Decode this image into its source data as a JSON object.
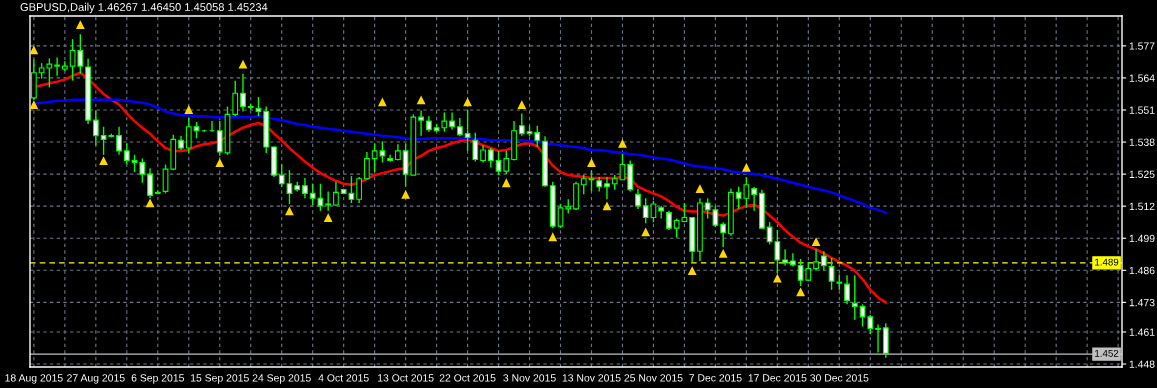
{
  "chart_data": {
    "type": "candlestick",
    "title": "GBPUSD,Daily 1.46267 1.46450 1.45058 1.45234",
    "color": "#00ff00",
    "categories": [
      "18 Aug 2015",
      null,
      null,
      null,
      null,
      null,
      null,
      null,
      "27 Aug 2015",
      null,
      null,
      null,
      null,
      null,
      null,
      null,
      "6 Sep 2015",
      null,
      null,
      null,
      null,
      null,
      null,
      null,
      "15 Sep 2015",
      null,
      null,
      null,
      null,
      null,
      null,
      null,
      "24 Sep 2015",
      null,
      null,
      null,
      null,
      null,
      null,
      null,
      "4 Oct 2015",
      null,
      null,
      null,
      null,
      null,
      null,
      null,
      "13 Oct 2015",
      null,
      null,
      null,
      null,
      null,
      null,
      null,
      "22 Oct 2015",
      null,
      null,
      null,
      null,
      null,
      null,
      null,
      "3 Nov 2015",
      null,
      null,
      null,
      null,
      null,
      null,
      null,
      "13 Nov 2015",
      null,
      null,
      null,
      null,
      null,
      null,
      null,
      "25 Nov 2015",
      null,
      null,
      null,
      null,
      null,
      null,
      null,
      "7 Dec 2015",
      null,
      null,
      null,
      null,
      null,
      null,
      null,
      "17 Dec 2015",
      null,
      null,
      null,
      null,
      null,
      null,
      null,
      "30 Dec 2015",
      null,
      null,
      null,
      null,
      null,
      null,
      null,
      null,
      null,
      null,
      null,
      null,
      null,
      null,
      null,
      null,
      null,
      null,
      null,
      null,
      null,
      null,
      null,
      null,
      null,
      null,
      null,
      null,
      null,
      null,
      null,
      null,
      null,
      null,
      null,
      null
    ],
    "ohlc": [
      [
        1.5559,
        1.5715,
        1.5551,
        1.5661
      ],
      [
        1.5661,
        1.57,
        1.5637,
        1.568
      ],
      [
        1.568,
        1.5719,
        1.5602,
        1.5696
      ],
      [
        1.5688,
        1.5723,
        1.5649,
        1.5692
      ],
      [
        1.5676,
        1.5708,
        1.5668,
        1.5688
      ],
      [
        1.5688,
        1.5797,
        1.5629,
        1.5751
      ],
      [
        1.5751,
        1.5817,
        1.5657,
        1.5688
      ],
      [
        1.5684,
        1.5719,
        1.5453,
        1.5469
      ],
      [
        1.5469,
        1.5508,
        1.5367,
        1.5406
      ],
      [
        1.5406,
        1.5442,
        1.5328,
        1.5391
      ],
      [
        1.5406,
        1.5414,
        1.5399,
        1.5403
      ],
      [
        1.5406,
        1.5442,
        1.5328,
        1.5344
      ],
      [
        1.5344,
        1.5375,
        1.5289,
        1.5305
      ],
      [
        1.5305,
        1.5328,
        1.5258,
        1.5297
      ],
      [
        1.5297,
        1.5313,
        1.5215,
        1.525
      ],
      [
        1.525,
        1.5274,
        1.5152,
        1.5164
      ],
      [
        1.5172,
        1.5184,
        1.5168,
        1.5176
      ],
      [
        1.518,
        1.5289,
        1.5172,
        1.527
      ],
      [
        1.527,
        1.541,
        1.5266,
        1.5391
      ],
      [
        1.5387,
        1.5406,
        1.5348,
        1.5356
      ],
      [
        1.5356,
        1.5477,
        1.5336,
        1.5442
      ],
      [
        1.5442,
        1.5461,
        1.5395,
        1.5426
      ],
      [
        1.5426,
        1.543,
        1.5422,
        1.5426
      ],
      [
        1.5426,
        1.5465,
        1.5422,
        1.5426
      ],
      [
        1.5426,
        1.5465,
        1.5324,
        1.534
      ],
      [
        1.5336,
        1.5524,
        1.5328,
        1.5492
      ],
      [
        1.5492,
        1.5629,
        1.5485,
        1.5578
      ],
      [
        1.5578,
        1.5657,
        1.5504,
        1.5524
      ],
      [
        1.5524,
        1.5535,
        1.5512,
        1.552
      ],
      [
        1.5516,
        1.5563,
        1.5485,
        1.5504
      ],
      [
        1.5504,
        1.5524,
        1.5336,
        1.536
      ],
      [
        1.536,
        1.5363,
        1.5238,
        1.5246
      ],
      [
        1.5246,
        1.5289,
        1.5199,
        1.5211
      ],
      [
        1.5211,
        1.5266,
        1.5129,
        1.5172
      ],
      [
        1.5203,
        1.5219,
        1.518,
        1.5187
      ],
      [
        1.5203,
        1.5234,
        1.5152,
        1.5172
      ],
      [
        1.5172,
        1.5211,
        1.5125,
        1.5152
      ],
      [
        1.5152,
        1.5211,
        1.5101,
        1.5121
      ],
      [
        1.5125,
        1.518,
        1.5101,
        1.5129
      ],
      [
        1.5125,
        1.5219,
        1.5121,
        1.5176
      ],
      [
        1.5187,
        1.5191,
        1.5168,
        1.5172
      ],
      [
        1.5172,
        1.5242,
        1.5133,
        1.5148
      ],
      [
        1.5148,
        1.5238,
        1.5133,
        1.5231
      ],
      [
        1.5231,
        1.534,
        1.5227,
        1.5313
      ],
      [
        1.5313,
        1.5375,
        1.5258,
        1.5344
      ],
      [
        1.5344,
        1.5383,
        1.5297,
        1.5324
      ],
      [
        1.5313,
        1.5328,
        1.5301,
        1.5305
      ],
      [
        1.5309,
        1.5371,
        1.5305,
        1.5344
      ],
      [
        1.5344,
        1.5375,
        1.5199,
        1.525
      ],
      [
        1.5246,
        1.5492,
        1.5246,
        1.5481
      ],
      [
        1.5481,
        1.5508,
        1.5406,
        1.5469
      ],
      [
        1.5465,
        1.5485,
        1.5422,
        1.543
      ],
      [
        1.5438,
        1.5453,
        1.5422,
        1.5426
      ],
      [
        1.5438,
        1.55,
        1.5422,
        1.5465
      ],
      [
        1.5465,
        1.55,
        1.543,
        1.5442
      ],
      [
        1.5442,
        1.5477,
        1.5403,
        1.541
      ],
      [
        1.5414,
        1.5512,
        1.5344,
        1.5399
      ],
      [
        1.5387,
        1.5418,
        1.5301,
        1.5309
      ],
      [
        1.5305,
        1.5367,
        1.5297,
        1.5348
      ],
      [
        1.5348,
        1.5356,
        1.5277,
        1.5305
      ],
      [
        1.5305,
        1.5344,
        1.5246,
        1.5262
      ],
      [
        1.5262,
        1.5344,
        1.525,
        1.5313
      ],
      [
        1.5309,
        1.5465,
        1.5305,
        1.5426
      ],
      [
        1.5446,
        1.5496,
        1.5406,
        1.5414
      ],
      [
        1.5422,
        1.5446,
        1.5403,
        1.5414
      ],
      [
        1.5418,
        1.5446,
        1.536,
        1.5387
      ],
      [
        1.5383,
        1.5403,
        1.5199,
        1.5203
      ],
      [
        1.5203,
        1.5219,
        1.5031,
        1.5039
      ],
      [
        1.5039,
        1.5129,
        1.5031,
        1.5113
      ],
      [
        1.5109,
        1.5148,
        1.509,
        1.5117
      ],
      [
        1.5109,
        1.5219,
        1.5105,
        1.5211
      ],
      [
        1.5207,
        1.5246,
        1.5168,
        1.5231
      ],
      [
        1.5227,
        1.5266,
        1.518,
        1.5231
      ],
      [
        1.5223,
        1.5238,
        1.518,
        1.5199
      ],
      [
        1.5211,
        1.5238,
        1.5148,
        1.5199
      ],
      [
        1.5211,
        1.5246,
        1.5187,
        1.5231
      ],
      [
        1.5227,
        1.5332,
        1.5227,
        1.5289
      ],
      [
        1.5289,
        1.5305,
        1.518,
        1.5187
      ],
      [
        1.5168,
        1.5191,
        1.5109,
        1.5121
      ],
      [
        1.5121,
        1.5152,
        1.5051,
        1.5074
      ],
      [
        1.5074,
        1.5141,
        1.5055,
        1.5129
      ],
      [
        1.5113,
        1.5121,
        1.507,
        1.5101
      ],
      [
        1.5094,
        1.5101,
        1.5023,
        1.5031
      ],
      [
        1.5031,
        1.507,
        1.4992,
        1.5062
      ],
      [
        1.5058,
        1.5133,
        1.5055,
        1.5074
      ],
      [
        1.5074,
        1.5074,
        1.4894,
        1.4937
      ],
      [
        1.4937,
        1.5152,
        1.4898,
        1.5133
      ],
      [
        1.5133,
        1.5152,
        1.507,
        1.5105
      ],
      [
        1.5105,
        1.5121,
        1.5035,
        1.5043
      ],
      [
        1.5047,
        1.5055,
        1.4953,
        1.5012
      ],
      [
        1.5008,
        1.5191,
        1.5,
        1.5176
      ],
      [
        1.5176,
        1.5199,
        1.5109,
        1.5152
      ],
      [
        1.5152,
        1.5238,
        1.5113,
        1.5207
      ],
      [
        1.5191,
        1.5199,
        1.5101,
        1.5168
      ],
      [
        1.5172,
        1.5187,
        1.5031,
        1.5031
      ],
      [
        1.5035,
        1.5055,
        1.4965,
        1.4976
      ],
      [
        1.4976,
        1.5023,
        1.4847,
        1.4902
      ],
      [
        1.4902,
        1.4945,
        1.4879,
        1.489
      ],
      [
        1.4898,
        1.4929,
        1.4875,
        1.4882
      ],
      [
        1.4879,
        1.4906,
        1.4796,
        1.482
      ],
      [
        1.482,
        1.4894,
        1.4816,
        1.4867
      ],
      [
        1.4867,
        1.4945,
        1.4859,
        1.4894
      ],
      [
        1.4918,
        1.4937,
        1.4859,
        1.4879
      ],
      [
        1.4875,
        1.491,
        1.4781,
        1.4816
      ],
      [
        1.4812,
        1.4843,
        1.4781,
        1.4808
      ],
      [
        1.4804,
        1.484,
        1.4722,
        1.4738
      ],
      [
        1.4726,
        1.484,
        1.466,
        1.4714
      ],
      [
        1.4714,
        1.4722,
        1.4632,
        1.4671
      ],
      [
        1.4671,
        1.4679,
        1.4601,
        1.4624
      ],
      [
        1.4624,
        1.464,
        1.4527,
        1.4621
      ],
      [
        1.46267,
        1.4645,
        1.45058,
        1.45234
      ],
      null,
      null,
      null,
      null,
      null,
      null,
      null,
      null,
      null,
      null,
      null,
      null,
      null,
      null,
      null,
      null,
      null,
      null,
      null,
      null,
      null,
      null,
      null,
      null,
      null,
      null,
      null,
      null,
      null,
      null
    ],
    "series": [
      {
        "type": "line",
        "color": "#ff0000",
        "values": [
          1.5602,
          1.561,
          1.5618,
          1.5625,
          1.5633,
          1.5649,
          1.5661,
          1.5637,
          1.5606,
          1.5575,
          1.5551,
          1.5532,
          1.5496,
          1.5465,
          1.5438,
          1.5414,
          1.5383,
          1.5356,
          1.5344,
          1.5344,
          1.5348,
          1.5363,
          1.5371,
          1.5375,
          1.5383,
          1.5403,
          1.5422,
          1.5438,
          1.5449,
          1.5457,
          1.5446,
          1.5414,
          1.5387,
          1.5356,
          1.5328,
          1.5301,
          1.5277,
          1.5254,
          1.5238,
          1.5223,
          1.5211,
          1.5207,
          1.5215,
          1.5231,
          1.5246,
          1.5254,
          1.5262,
          1.527,
          1.5274,
          1.5309,
          1.5324,
          1.5344,
          1.5356,
          1.5363,
          1.5375,
          1.5383,
          1.5391,
          1.5379,
          1.5367,
          1.5356,
          1.5344,
          1.5348,
          1.536,
          1.5371,
          1.5375,
          1.5363,
          1.5324,
          1.5285,
          1.5258,
          1.5246,
          1.5242,
          1.5238,
          1.5234,
          1.5234,
          1.5234,
          1.5234,
          1.5238,
          1.5231,
          1.5199,
          1.5184,
          1.5172,
          1.516,
          1.5141,
          1.5117,
          1.5101,
          1.5098,
          1.5098,
          1.5094,
          1.5086,
          1.5082,
          1.5094,
          1.5109,
          1.5121,
          1.5125,
          1.5109,
          1.5082,
          1.5055,
          1.5023,
          1.4996,
          1.4972,
          1.4957,
          1.4945,
          1.4929,
          1.491,
          1.4894,
          1.4879,
          1.4859,
          1.4824,
          1.4781,
          1.475,
          1.473,
          null,
          null,
          null,
          null,
          null,
          null,
          null,
          null,
          null,
          null,
          null,
          null,
          null,
          null,
          null,
          null,
          null,
          null,
          null,
          null,
          null,
          null,
          null,
          null,
          null,
          null,
          null,
          null,
          null,
          null
        ]
      },
      {
        "type": "line",
        "color": "#0000ff",
        "values": [
          1.5535,
          1.5539,
          1.5543,
          1.5547,
          1.5547,
          1.5551,
          1.5551,
          1.5551,
          1.5551,
          1.5551,
          1.5551,
          1.5551,
          1.5547,
          1.5543,
          1.5539,
          1.5532,
          1.552,
          1.5504,
          1.5496,
          1.5489,
          1.5489,
          1.5485,
          1.5485,
          1.5481,
          1.5481,
          1.5481,
          1.5481,
          1.5481,
          1.5481,
          1.5485,
          1.5481,
          1.5473,
          1.5469,
          1.5461,
          1.5453,
          1.5449,
          1.5442,
          1.5438,
          1.5434,
          1.543,
          1.5426,
          1.5422,
          1.5418,
          1.5414,
          1.541,
          1.5406,
          1.5403,
          1.5399,
          1.5395,
          1.5391,
          1.5391,
          1.5395,
          1.5395,
          1.5395,
          1.5395,
          1.5395,
          1.5395,
          1.5391,
          1.5391,
          1.5387,
          1.5387,
          1.5387,
          1.5387,
          1.5387,
          1.5383,
          1.5383,
          1.5375,
          1.5371,
          1.5367,
          1.5363,
          1.536,
          1.5356,
          1.5348,
          1.5348,
          1.5344,
          1.534,
          1.5336,
          1.5332,
          1.5328,
          1.5324,
          1.5317,
          1.5313,
          1.5309,
          1.5301,
          1.5293,
          1.5285,
          1.5281,
          1.5277,
          1.5274,
          1.527,
          1.5262,
          1.5258,
          1.5254,
          1.525,
          1.5246,
          1.5238,
          1.5231,
          1.5223,
          1.5215,
          1.5207,
          1.5199,
          1.5191,
          1.5184,
          1.5176,
          1.5164,
          1.5152,
          1.5141,
          1.5129,
          1.5113,
          1.5105,
          1.5094,
          null,
          null,
          null,
          null,
          null,
          null,
          null,
          null,
          null,
          null,
          null,
          null,
          null,
          null,
          null,
          null,
          null,
          null,
          null,
          null,
          null,
          null,
          null,
          null,
          null,
          null,
          null,
          null,
          null,
          null
        ]
      },
      {
        "type": "scatter",
        "color": "#ffd700",
        "marker": "triangle",
        "values": [
          1.5754,
          null,
          null,
          null,
          null,
          null,
          1.5856,
          null,
          null,
          null,
          null,
          null,
          null,
          null,
          null,
          null,
          null,
          null,
          null,
          null,
          1.5512,
          null,
          null,
          null,
          null,
          null,
          null,
          1.5696,
          null,
          null,
          null,
          null,
          null,
          null,
          null,
          null,
          null,
          null,
          null,
          null,
          null,
          null,
          null,
          null,
          null,
          1.5543,
          null,
          null,
          null,
          null,
          1.5551,
          null,
          null,
          null,
          null,
          null,
          1.5543,
          null,
          null,
          null,
          null,
          null,
          null,
          1.5532,
          null,
          null,
          null,
          null,
          null,
          null,
          null,
          null,
          1.5297,
          null,
          null,
          null,
          1.5375,
          null,
          null,
          null,
          null,
          null,
          null,
          null,
          null,
          null,
          1.5191,
          null,
          null,
          null,
          null,
          null,
          1.5277,
          null,
          null,
          null,
          null,
          null,
          null,
          null,
          null,
          1.4976,
          null,
          null,
          null,
          null,
          null,
          null,
          null,
          null,
          null,
          null,
          null,
          null,
          null,
          null,
          null,
          null,
          null,
          null,
          null,
          null,
          null,
          null,
          null,
          null,
          null,
          null,
          null,
          null,
          null,
          null,
          null,
          null,
          null,
          null,
          null,
          null,
          null,
          null,
          null
        ]
      },
      {
        "type": "scatter",
        "color": "#ffd700",
        "marker": "triangle",
        "values": [
          1.5532,
          null,
          null,
          null,
          null,
          null,
          null,
          null,
          null,
          1.5305,
          null,
          null,
          null,
          null,
          null,
          1.5133,
          null,
          null,
          null,
          null,
          null,
          null,
          null,
          null,
          1.5297,
          null,
          null,
          null,
          null,
          null,
          null,
          null,
          null,
          1.5101,
          null,
          null,
          null,
          null,
          1.5074,
          null,
          null,
          null,
          null,
          null,
          null,
          null,
          null,
          null,
          1.5168,
          null,
          null,
          null,
          null,
          null,
          null,
          null,
          null,
          null,
          null,
          null,
          null,
          1.5215,
          null,
          null,
          null,
          null,
          null,
          1.4996,
          null,
          null,
          null,
          null,
          null,
          null,
          1.5121,
          null,
          null,
          null,
          null,
          1.5016,
          null,
          null,
          null,
          null,
          null,
          1.4859,
          null,
          null,
          null,
          1.4929,
          null,
          null,
          null,
          null,
          null,
          null,
          1.4828,
          null,
          null,
          1.4773,
          null,
          null,
          null,
          null,
          null,
          null,
          null,
          null,
          null,
          null,
          null,
          null,
          null,
          null,
          null,
          null,
          null,
          null,
          null,
          null,
          null,
          null,
          null,
          null,
          null,
          null,
          null,
          null,
          null,
          null,
          null,
          null,
          null,
          null,
          null,
          null,
          null,
          null,
          null,
          null,
          null
        ]
      }
    ],
    "ylim": [
      1.4468,
      1.5891
    ],
    "yticks": [
      1.448,
      1.461,
      1.473,
      1.486,
      1.499,
      1.512,
      1.525,
      1.538,
      1.551,
      1.564,
      1.577
    ],
    "ref_lines": [
      {
        "axis": "y",
        "value": 1.489,
        "label": "1.489",
        "color": "#ffff00",
        "line_style": "dashed"
      },
      {
        "axis": "y",
        "value": 1.452,
        "label": "1.452",
        "color": "#c0c0c0",
        "line_style": "solid"
      }
    ],
    "grid": true
  }
}
